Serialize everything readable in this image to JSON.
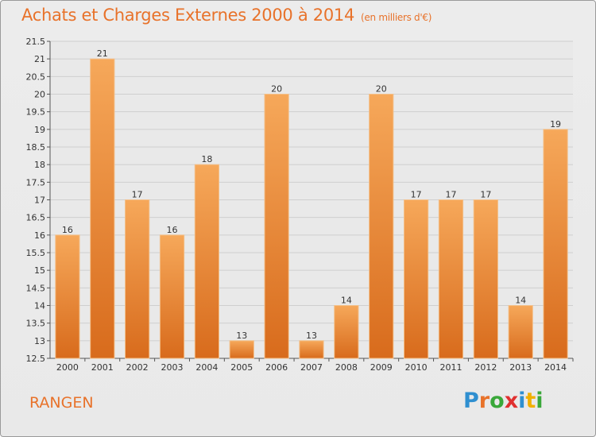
{
  "header": {
    "title": "Achats et Charges Externes 2000 à 2014",
    "unit": "(en milliers d'€)"
  },
  "footer": {
    "commune": "RANGEN",
    "logo_letters": [
      "P",
      "r",
      "o",
      "x",
      "i",
      "t",
      "i"
    ],
    "logo_colors": [
      "#2f8fd0",
      "#e8722a",
      "#3aa83a",
      "#e03030",
      "#2f8fd0",
      "#f0b000",
      "#3aa83a"
    ]
  },
  "chart_data": {
    "type": "bar",
    "categories": [
      "2000",
      "2001",
      "2002",
      "2003",
      "2004",
      "2005",
      "2006",
      "2007",
      "2008",
      "2009",
      "2010",
      "2011",
      "2012",
      "2013",
      "2014"
    ],
    "values": [
      16,
      21,
      17,
      16,
      18,
      13,
      20,
      13,
      14,
      20,
      17,
      17,
      17,
      14,
      19
    ],
    "value_labels": [
      "16",
      "21",
      "17",
      "16",
      "18",
      "13",
      "20",
      "13",
      "14",
      "20",
      "17",
      "17",
      "17",
      "14",
      "19"
    ],
    "yticks": [
      "12.5",
      "13",
      "13.5",
      "14",
      "14.5",
      "15",
      "15.5",
      "16",
      "16.5",
      "17",
      "17.5",
      "18",
      "18.5",
      "19",
      "19.5",
      "20",
      "20.5",
      "21",
      "21.5"
    ],
    "ylim": [
      12.5,
      21.5
    ],
    "grid": true,
    "bar_color": "#e8822e"
  }
}
